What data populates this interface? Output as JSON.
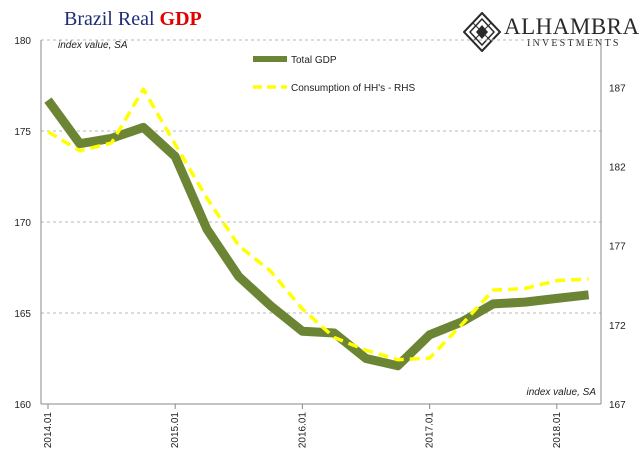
{
  "header": {
    "title_part1": "Brazil Real ",
    "title_part2": "GDP"
  },
  "logo": {
    "name": "ALHAMBRA",
    "subtitle": "INVESTMENTS"
  },
  "colors": {
    "total_gdp": "#6b8534",
    "consumption": "#ffff00",
    "grid": "#b8b8b8",
    "axis": "#888888"
  },
  "chart_data": {
    "type": "line",
    "title": "Brazil Real GDP",
    "ylabel_left": "index value, SA",
    "ylabel_right": "index value, SA",
    "x_tick_labels": [
      "2014.01",
      "2015.01",
      "2016.01",
      "2017.01",
      "2018.01"
    ],
    "x": [
      "2014.01",
      "2014.04",
      "2014.07",
      "2014.10",
      "2015.01",
      "2015.04",
      "2015.07",
      "2015.10",
      "2016.01",
      "2016.04",
      "2016.07",
      "2016.10",
      "2017.01",
      "2017.04",
      "2017.07",
      "2017.10",
      "2018.01",
      "2018.04"
    ],
    "ylim_left": [
      160,
      180
    ],
    "yticks_left": [
      160,
      165,
      170,
      175,
      180
    ],
    "ylim_right": [
      167,
      190
    ],
    "yticks_right": [
      167,
      172,
      177,
      182,
      187
    ],
    "grid": true,
    "legend_position": "top-center",
    "series": [
      {
        "name": "Total GDP",
        "axis": "left",
        "style": "solid",
        "values": [
          176.7,
          174.3,
          174.6,
          175.2,
          173.6,
          169.6,
          167.0,
          165.4,
          164.0,
          163.9,
          162.5,
          162.1,
          163.8,
          164.5,
          165.5,
          165.6,
          165.8,
          166.0
        ]
      },
      {
        "name": "Consumption of HH's - RHS",
        "axis": "right",
        "style": "dashed",
        "values": [
          184.2,
          183.0,
          183.5,
          186.9,
          183.4,
          180.0,
          177.0,
          175.4,
          173.0,
          171.2,
          170.4,
          169.8,
          169.9,
          172.0,
          174.2,
          174.3,
          174.8,
          174.9
        ]
      }
    ]
  }
}
